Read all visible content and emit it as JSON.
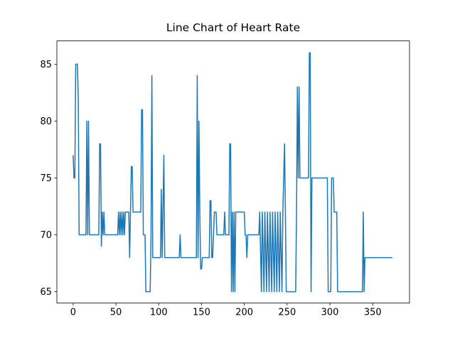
{
  "chart_data": {
    "type": "line",
    "title": "Line Chart of Heart Rate",
    "x": [
      0,
      1,
      2,
      3,
      5,
      6,
      7,
      15,
      16,
      17,
      18,
      19,
      30,
      31,
      32,
      33,
      34,
      35,
      36,
      37,
      52,
      53,
      54,
      55,
      56,
      57,
      58,
      59,
      60,
      61,
      65,
      66,
      67,
      68,
      69,
      70,
      79,
      80,
      81,
      82,
      84,
      85,
      90,
      91,
      92,
      93,
      102,
      103,
      104,
      106,
      107,
      124,
      125,
      126,
      144,
      145,
      146,
      147,
      148,
      149,
      150,
      151,
      159,
      160,
      161,
      162,
      163,
      165,
      167,
      168,
      176,
      177,
      178,
      182,
      183,
      184,
      185,
      186,
      187,
      188,
      189,
      190,
      200,
      201,
      202,
      203,
      204,
      217,
      218,
      220,
      221,
      223,
      224,
      226,
      227,
      229,
      230,
      232,
      233,
      235,
      236,
      238,
      239,
      241,
      242,
      244,
      245,
      247,
      248,
      249,
      260,
      261,
      262,
      263,
      264,
      265,
      275,
      276,
      277,
      278,
      279,
      297,
      298,
      301,
      302,
      304,
      305,
      308,
      309,
      338,
      339,
      340,
      341,
      373
    ],
    "series": [
      {
        "color": "#1f77b4",
        "values": [
          77,
          75,
          75,
          85,
          85,
          82,
          70,
          70,
          80,
          70,
          80,
          70,
          70,
          78,
          78,
          69,
          72,
          70,
          72,
          70,
          70,
          72,
          70,
          72,
          70,
          72,
          70,
          72,
          70,
          72,
          72,
          68,
          72,
          76,
          76,
          72,
          72,
          81,
          81,
          70,
          70,
          65,
          65,
          70,
          84,
          68,
          68,
          74,
          68,
          77,
          68,
          68,
          70,
          68,
          68,
          84,
          68,
          80,
          72,
          67,
          67,
          68,
          68,
          73,
          73,
          68,
          68,
          72,
          72,
          70,
          70,
          72,
          70,
          70,
          78,
          78,
          65,
          72,
          65,
          72,
          65,
          72,
          72,
          70,
          70,
          68,
          70,
          70,
          72,
          65,
          72,
          65,
          72,
          65,
          72,
          65,
          72,
          65,
          72,
          65,
          72,
          65,
          72,
          65,
          72,
          65,
          72,
          78,
          72,
          65,
          65,
          72,
          83,
          75,
          83,
          75,
          75,
          86,
          86,
          65,
          75,
          75,
          65,
          65,
          75,
          75,
          72,
          72,
          65,
          65,
          72,
          65,
          68,
          68
        ]
      }
    ],
    "xlim": [
      -19,
      393
    ],
    "ylim": [
      64,
      87.05
    ],
    "xticks": [
      0,
      50,
      100,
      150,
      200,
      250,
      300,
      350
    ],
    "yticks": [
      65,
      70,
      75,
      80,
      85
    ]
  }
}
